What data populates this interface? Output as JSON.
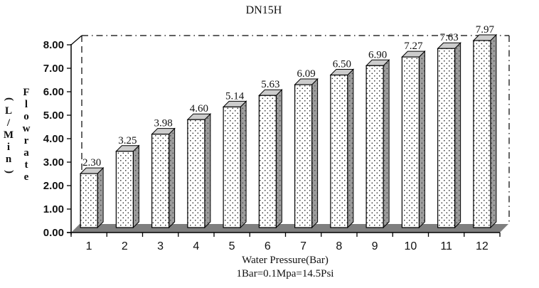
{
  "chart_data": {
    "type": "bar",
    "title": "DN15H",
    "categories": [
      "1",
      "2",
      "3",
      "4",
      "5",
      "6",
      "7",
      "8",
      "9",
      "10",
      "11",
      "12"
    ],
    "values": [
      2.3,
      3.25,
      3.98,
      4.6,
      5.14,
      5.63,
      6.09,
      6.5,
      6.9,
      7.27,
      7.63,
      7.97
    ],
    "value_labels": [
      "2.30",
      "3.25",
      "3.98",
      "4.60",
      "5.14",
      "5.63",
      "6.09",
      "6.50",
      "6.90",
      "7.27",
      "7.63",
      "7.97"
    ],
    "xlabel": "Water Pressure(Bar)",
    "xlabel_note": "1Bar=0.1Mpa=14.5Psi",
    "ylabel": "Flow rate (L/Min)",
    "ylabel_col1": "(L/Min)",
    "ylabel_col2": "Flowrate",
    "ylim": [
      0,
      8
    ],
    "ytick_labels": [
      "0.00",
      "1.00",
      "2.00",
      "3.00",
      "4.00",
      "5.00",
      "6.00",
      "7.00",
      "8.00"
    ],
    "grid": false,
    "legend_position": "none",
    "style": "3d-bar",
    "colors": {
      "bar_front": "#ffffff",
      "bar_side": "#9c9c9c",
      "bar_top": "#cccccc",
      "bar_dots": "#1a1a1a",
      "floor": "#7f7f7f",
      "line": "#000000",
      "background": "#ffffff"
    }
  }
}
